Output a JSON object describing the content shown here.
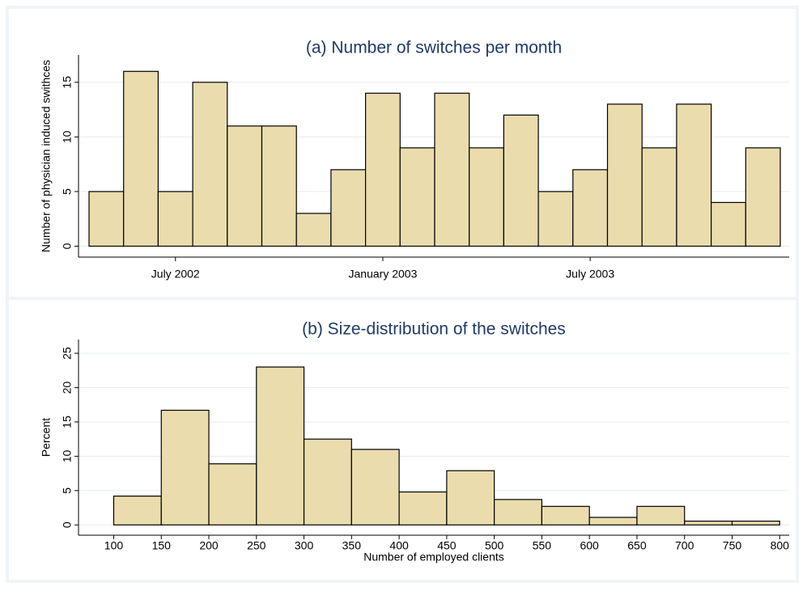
{
  "chart_data": [
    {
      "type": "bar",
      "title": "(a) Number of switches per month",
      "ylabel": "Number of physician induced swithces",
      "categories": [
        null,
        null,
        "July 2002",
        null,
        null,
        null,
        null,
        null,
        "January 2003",
        null,
        null,
        null,
        null,
        null,
        "July 2003",
        null,
        null,
        null,
        null,
        null
      ],
      "values": [
        5,
        16,
        5,
        15,
        11,
        11,
        3,
        7,
        14,
        9,
        14,
        9,
        12,
        5,
        7,
        13,
        9,
        13,
        4,
        9
      ],
      "color": "#eadcad",
      "ylim": [
        -1,
        17.5
      ],
      "yticks": [
        0,
        5,
        10,
        15
      ],
      "grid": true
    },
    {
      "type": "histogram",
      "title": "(b) Size-distribution of the switches",
      "ylabel": "Percent",
      "xlabel": "Number of employed clients",
      "bins": [
        100,
        150,
        200,
        250,
        300,
        350,
        400,
        450,
        500,
        550,
        600,
        650,
        700,
        750,
        800
      ],
      "values": [
        4.2,
        16.7,
        8.9,
        23,
        12.5,
        11,
        4.8,
        7.9,
        3.7,
        2.7,
        1.1,
        2.7,
        0.55,
        0.55
      ],
      "color": "#eadcad",
      "xlim": [
        63,
        810
      ],
      "xticks": [
        100,
        150,
        200,
        250,
        300,
        350,
        400,
        450,
        500,
        550,
        600,
        650,
        700,
        750,
        800
      ],
      "ylim": [
        -1.5,
        27
      ],
      "yticks": [
        0,
        5,
        10,
        15,
        20,
        25
      ],
      "grid": true
    }
  ]
}
